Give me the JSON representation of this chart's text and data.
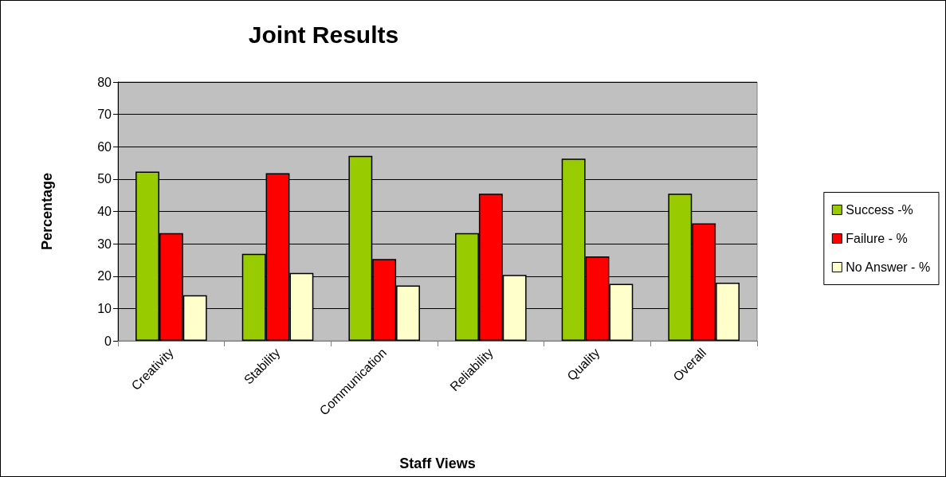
{
  "chart_data": {
    "type": "bar",
    "title": "Joint Results",
    "xlabel": "Staff Views",
    "ylabel": "Percentage",
    "categories": [
      "Creativity",
      "Stability",
      "Communication",
      "Reliability",
      "Quality",
      "Overall"
    ],
    "series": [
      {
        "name": "Success -%",
        "color": "#99cc00",
        "values": [
          52.3,
          26.9,
          57.2,
          33.3,
          56.3,
          45.5
        ]
      },
      {
        "name": "Failure - %",
        "color": "#ff0000",
        "values": [
          33.3,
          51.8,
          25.3,
          45.5,
          26.1,
          36.3
        ]
      },
      {
        "name": "No Answer - %",
        "color": "#ffffcc",
        "values": [
          14.1,
          21.0,
          17.1,
          20.4,
          17.6,
          18.0
        ]
      }
    ],
    "ylim": [
      0,
      80
    ],
    "yticks": [
      0,
      10,
      20,
      30,
      40,
      50,
      60,
      70,
      80
    ],
    "grid": "y",
    "legend": "right"
  }
}
